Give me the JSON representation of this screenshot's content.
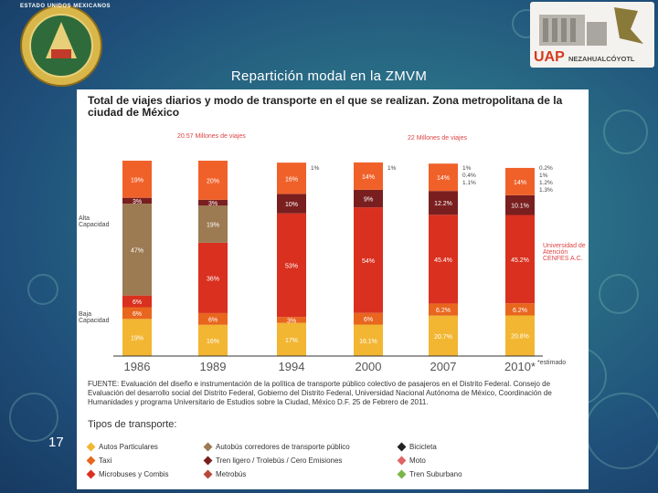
{
  "slide": {
    "title": "Repartición modal en la ZMVM",
    "page_number": "17",
    "seal_text": "ESTADO UNIDOS MEXICANOS",
    "logo_text": "UAP",
    "logo_sub": "NEZAHUALCÓYOTL"
  },
  "figure": {
    "title": "Total de viajes diarios y modo de transporte en el que se realizan. Zona metropolitana de la ciudad de México",
    "group_label_left": "20.57 Millones de viajes",
    "group_label_right": "22 Millones de viajes",
    "alta_label": "Alta Capacidad",
    "baja_label": "Baja Capacidad",
    "univ_label": "Universidad de Atención CENFES A.C.",
    "estimado_label": "*estimado",
    "source": "FUENTE: Evaluación del diseño e instrumentación de la política de transporte público colectivo de pasajeros en el Distrito Federal. Consejo de Evaluación del desarrollo social del Distrito Federal, Gobierno del Distrito Federal, Universidad Nacional Autónoma de México, Coordinación de Humanidades y programa Universitario de Estudios sobre la Ciudad, México D.F. 25 de Febrero de 2011.",
    "types_title": "Tipos de transporte:",
    "legend": [
      {
        "label": "Autos Particulares",
        "color": "#f2b632"
      },
      {
        "label": "Taxi",
        "color": "#e8661e"
      },
      {
        "label": "Microbuses y Combis",
        "color": "#d9301f"
      },
      {
        "label": "Autobús corredores de transporte público",
        "color": "#9c7a52"
      },
      {
        "label": "Tren ligero / Trolebús / Cero Emisiones",
        "color": "#7a1f1f"
      },
      {
        "label": "Metrobús",
        "color": "#b8493a"
      },
      {
        "label": "Bicicleta",
        "color": "#222222"
      },
      {
        "label": "Moto",
        "color": "#e06464"
      },
      {
        "label": "Tren Suburbano",
        "color": "#7ab648"
      }
    ]
  },
  "chart_data": {
    "type": "bar",
    "categories": [
      "1986",
      "1989",
      "1994",
      "2000",
      "2007",
      "2010*"
    ],
    "series": [
      {
        "name": "Autos Particulares",
        "values": [
          19,
          16,
          17,
          16.1,
          20.7,
          20.8
        ]
      },
      {
        "name": "Taxi",
        "values": [
          6,
          6,
          3,
          6,
          6.2,
          6.2
        ]
      },
      {
        "name": "Microbuses y Combis",
        "values": [
          6,
          36,
          53,
          54,
          45.4,
          45.2
        ]
      },
      {
        "name": "Autobús corredores de transporte público",
        "values": [
          47,
          19,
          0,
          0,
          0,
          0
        ]
      },
      {
        "name": "Tren ligero / Trolebús / Cero Emisiones",
        "values": [
          3,
          3,
          10,
          9,
          12.2,
          10.1
        ]
      },
      {
        "name": "Metro",
        "values": [
          19,
          20,
          16,
          14,
          14,
          14
        ]
      }
    ],
    "labels": [
      [
        "19%",
        "6%",
        "6%",
        "47%",
        "3%",
        "19%"
      ],
      [
        "16%",
        "6%",
        "36%",
        "19%",
        "3%",
        "20%"
      ],
      [
        "17%",
        "3%",
        "53%",
        "",
        "10%",
        "16%"
      ],
      [
        "16.1%",
        "6%",
        "54%",
        "",
        "9%",
        "14%"
      ],
      [
        "20.7%",
        "6.2%",
        "45.4%",
        "",
        "12.2%",
        "14%"
      ],
      [
        "20.8%",
        "6.2%",
        "45.2%",
        "",
        "10.1%",
        "14%"
      ]
    ],
    "small_labels": {
      "1994": [
        "1%"
      ],
      "2000": [
        "1%"
      ],
      "2007": [
        "1%",
        "0.4%",
        "1.1%"
      ],
      "2010*": [
        "0.2%",
        "1%",
        "1.2%",
        "1.3%"
      ]
    },
    "ylim": [
      0,
      100
    ]
  }
}
